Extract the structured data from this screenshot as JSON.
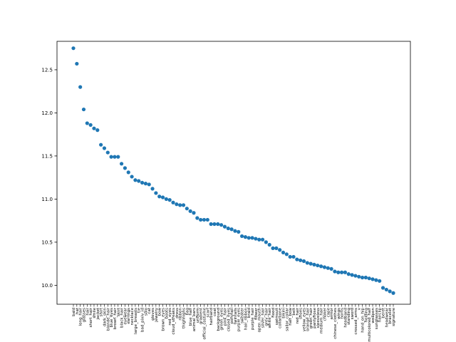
{
  "chart_data": {
    "type": "scatter",
    "title": "",
    "xlabel": "",
    "ylabel": "",
    "marker_color": "#1f77b4",
    "grid": false,
    "legend": "none",
    "ylim": [
      9.78,
      12.83
    ],
    "yticks": [
      10.0,
      10.5,
      11.0,
      11.5,
      12.0,
      12.5
    ],
    "ytick_labels": [
      "10.0",
      "10.5",
      "11.0",
      "11.5",
      "12.0",
      "12.5"
    ],
    "categories": [
      "bald",
      "hat",
      "long_hair",
      "glasses",
      "hair",
      "short_hair",
      "smile",
      "jacket",
      "shirt",
      "dark_skin",
      "blonde_hair",
      "blue_eyes",
      "brown_hair",
      "skirt",
      "black_hair",
      "eyewear",
      "earrings",
      "necklace",
      "large_breasts",
      "tie",
      "bad_pixiv_id",
      "solo",
      "cat",
      "gloves",
      "jewelry",
      "bow",
      "brown_eyes",
      "boots",
      "red_eyes",
      "cloud_streaks",
      "dress",
      "ribbon",
      "thighhighs",
      "bag",
      "blue_hair",
      "animal_ears",
      "uniform",
      "gradient",
      "official_costume",
      "scarf",
      "hairband",
      "coat",
      "background",
      "green_eyes",
      "pink_hair",
      "closed_eyes",
      "ponytail",
      "twintails",
      "purple_eyes",
      "sweater",
      "hair_ribbon",
      "braid",
      "purple_hair",
      "flower",
      "open_mouth",
      "silver_hair",
      "grey_hair",
      "white_hair",
      "hood",
      "swimsuit",
      "collarbone",
      "bikini",
      "sailor_collar",
      "hair_bow",
      "belt",
      "red_hair",
      "shoes",
      "yellow_eyes",
      "orange_hair",
      "green_hair",
      "pantyhose",
      "sleeveless",
      "medium_hair",
      "choker",
      "cape",
      "armor",
      "chinese_clothes",
      "wings",
      "horns",
      "headband",
      "standing",
      "sword",
      "crossed_arms",
      "v",
      "hand_on_hip",
      "holding",
      "multicolored_hair",
      "weapon",
      "sunglasses",
      "hairclip",
      "beret",
      "headwear",
      "bracelet",
      "signature"
    ],
    "values": [
      12.75,
      12.57,
      12.3,
      12.04,
      11.88,
      11.86,
      11.82,
      11.8,
      11.63,
      11.59,
      11.54,
      11.49,
      11.49,
      11.49,
      11.41,
      11.36,
      11.31,
      11.26,
      11.22,
      11.21,
      11.19,
      11.18,
      11.17,
      11.12,
      11.07,
      11.03,
      11.02,
      11.0,
      10.99,
      10.96,
      10.94,
      10.93,
      10.93,
      10.89,
      10.86,
      10.84,
      10.78,
      10.76,
      10.76,
      10.76,
      10.71,
      10.71,
      10.71,
      10.7,
      10.68,
      10.66,
      10.65,
      10.63,
      10.62,
      10.57,
      10.56,
      10.55,
      10.55,
      10.54,
      10.53,
      10.53,
      10.5,
      10.47,
      10.43,
      10.43,
      10.41,
      10.38,
      10.36,
      10.33,
      10.33,
      10.3,
      10.29,
      10.28,
      10.26,
      10.25,
      10.24,
      10.23,
      10.22,
      10.21,
      10.2,
      10.19,
      10.16,
      10.15,
      10.15,
      10.15,
      10.13,
      10.12,
      10.11,
      10.1,
      10.09,
      10.09,
      10.08,
      10.07,
      10.06,
      10.05,
      9.97,
      9.95,
      9.93,
      9.91
    ]
  }
}
